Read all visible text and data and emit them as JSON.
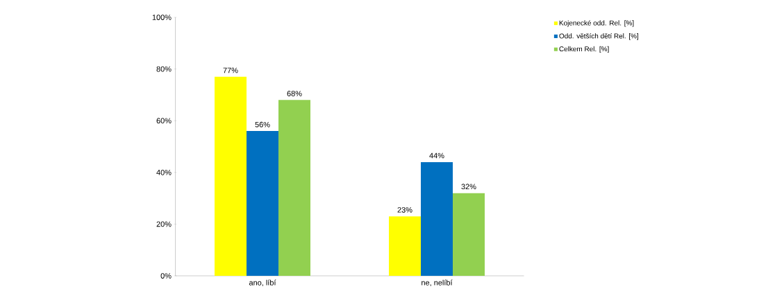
{
  "chart_data": {
    "type": "bar",
    "categories": [
      "ano, líbí",
      "ne, nelíbí"
    ],
    "series": [
      {
        "name": "Kojenecké odd. Rel. [%]",
        "color": "#ffff00",
        "values": [
          77,
          23
        ],
        "value_labels": [
          "77%",
          "23%"
        ]
      },
      {
        "name": "Odd. větších dětí Rel. [%]",
        "color": "#0070c0",
        "values": [
          56,
          44
        ],
        "value_labels": [
          "56%",
          "44%"
        ]
      },
      {
        "name": "Celkem Rel. [%]",
        "color": "#92d050",
        "values": [
          68,
          32
        ],
        "value_labels": [
          "68%",
          "32%"
        ]
      }
    ],
    "ylim": [
      0,
      100
    ],
    "yticks": [
      {
        "value": 0,
        "label": "0%"
      },
      {
        "value": 20,
        "label": "20%"
      },
      {
        "value": 40,
        "label": "40%"
      },
      {
        "value": 60,
        "label": "60%"
      },
      {
        "value": 80,
        "label": "80%"
      },
      {
        "value": 100,
        "label": "100%"
      }
    ],
    "grid": false,
    "legend": "top right"
  }
}
